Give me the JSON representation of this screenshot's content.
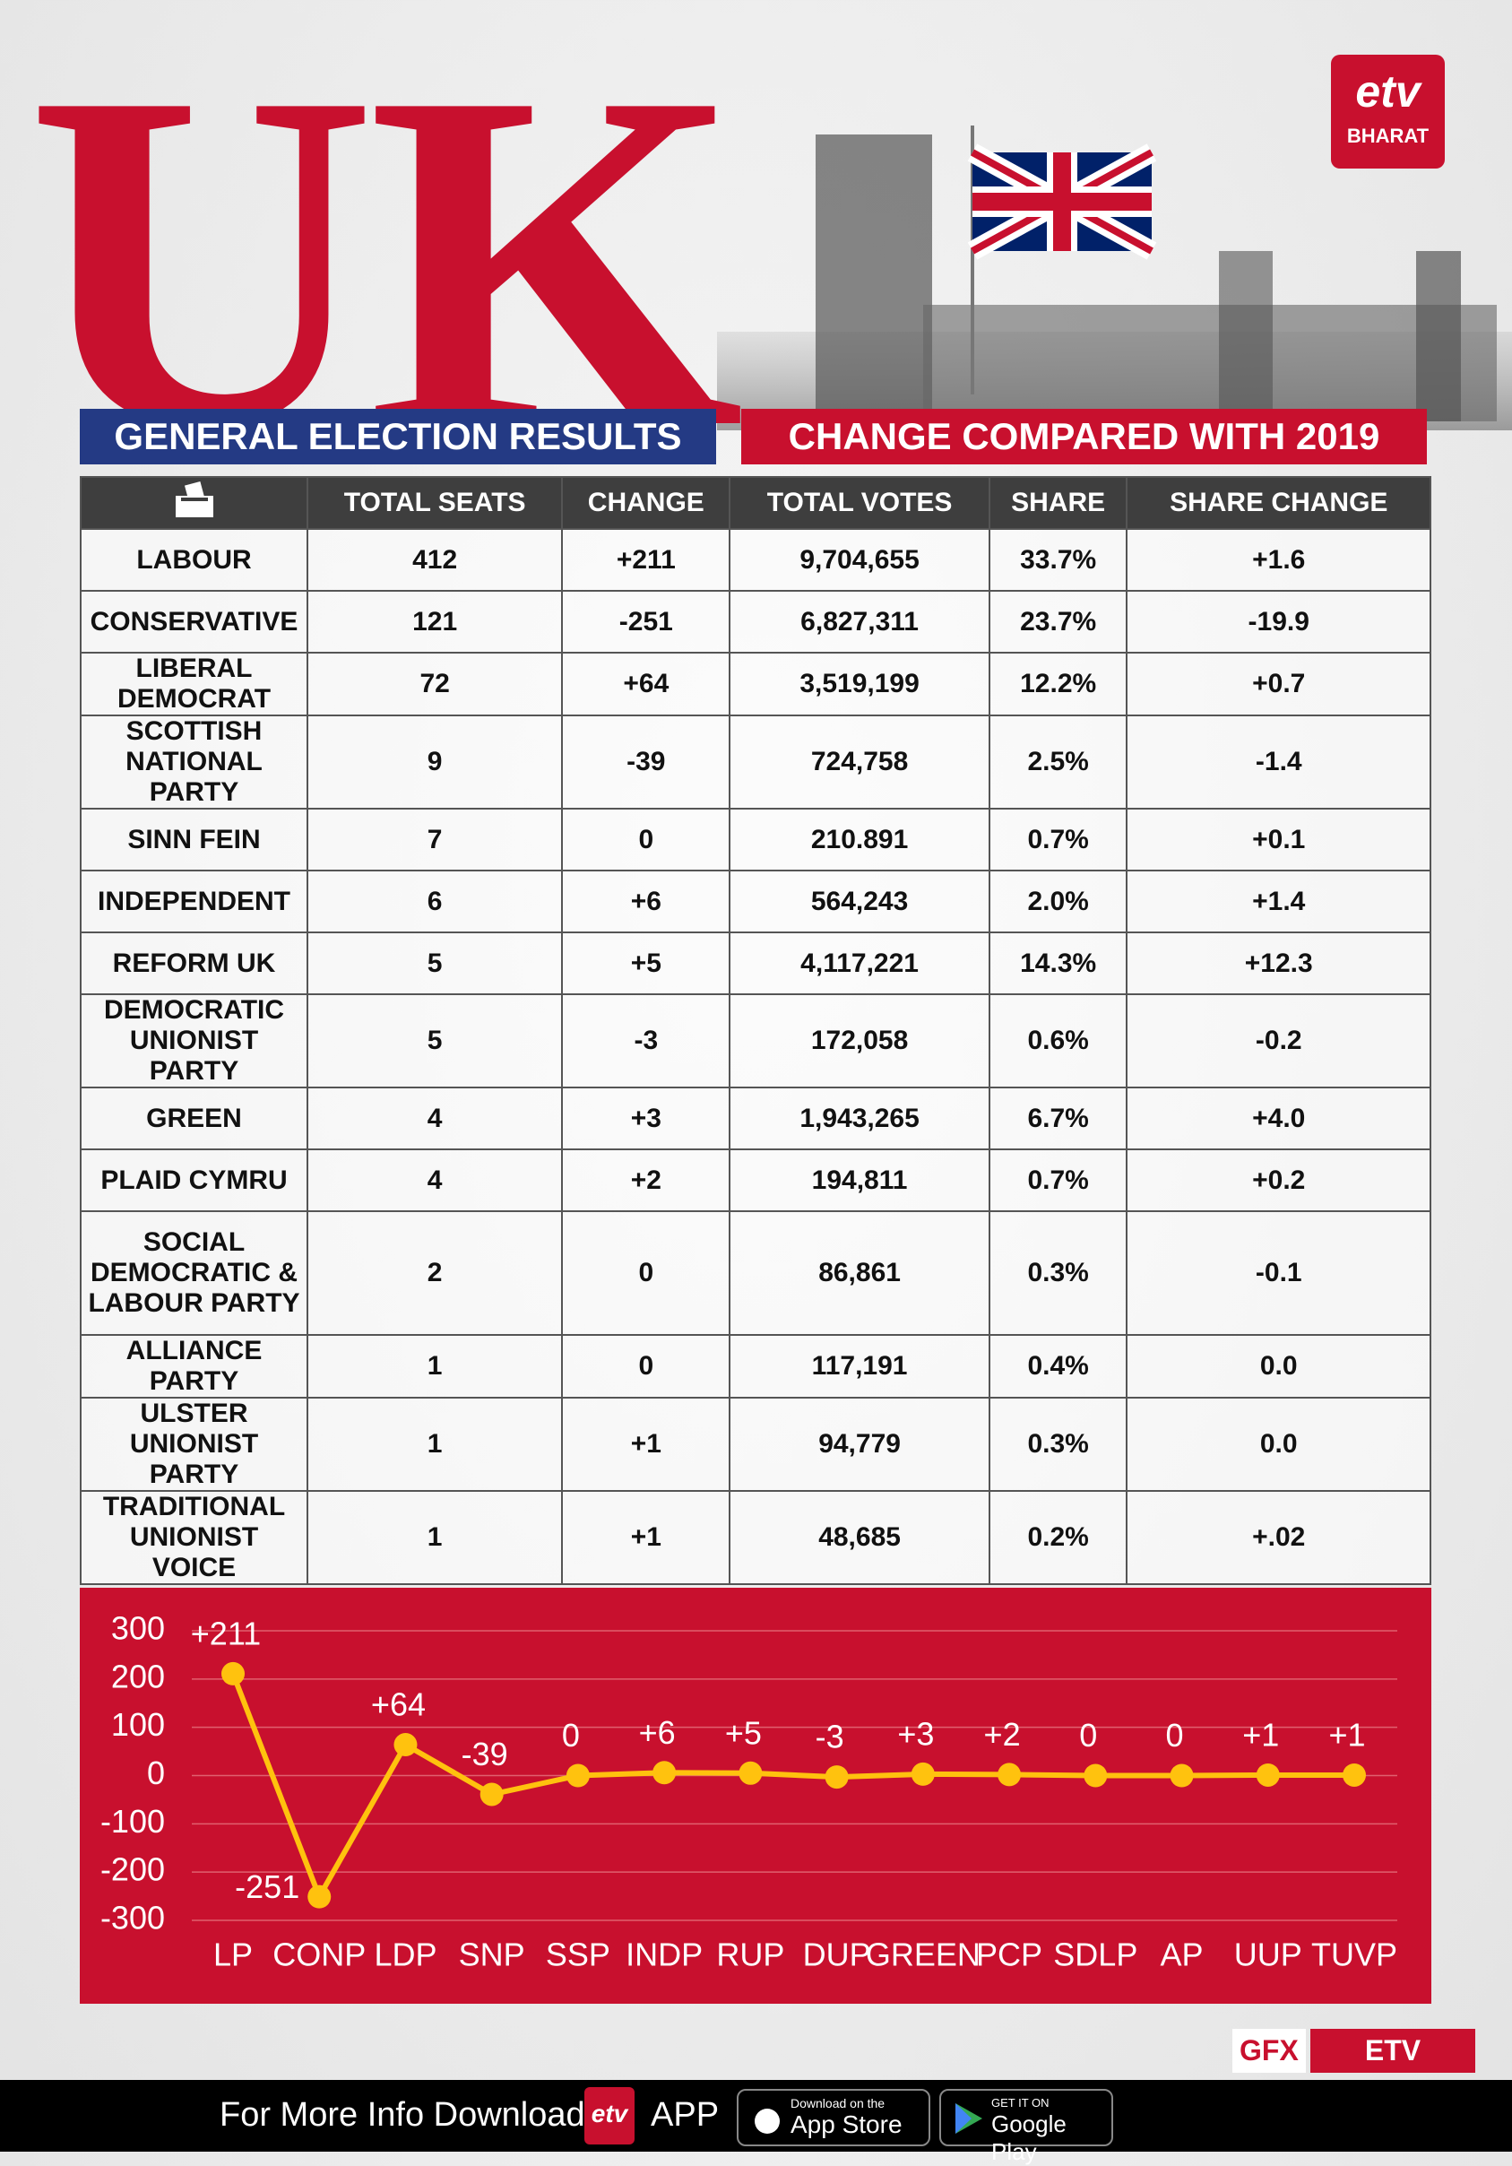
{
  "header": {
    "title": "UK",
    "banner_left": "GENERAL ELECTION RESULTS",
    "banner_right": "CHANGE COMPARED WITH 2019",
    "logo_mark": "etv",
    "logo_text": "BHARAT"
  },
  "table": {
    "columns": [
      "TOTAL SEATS",
      "CHANGE",
      "TOTAL VOTES",
      "SHARE",
      "SHARE CHANGE"
    ],
    "rows": [
      [
        "LABOUR",
        "412",
        "+211",
        "9,704,655",
        "33.7%",
        "+1.6"
      ],
      [
        "CONSERVATIVE",
        "121",
        "-251",
        "6,827,311",
        "23.7%",
        "-19.9"
      ],
      [
        "LIBERAL DEMOCRAT",
        "72",
        "+64",
        "3,519,199",
        "12.2%",
        "+0.7"
      ],
      [
        "SCOTTISH NATIONAL PARTY",
        "9",
        "-39",
        "724,758",
        "2.5%",
        "-1.4"
      ],
      [
        "SINN FEIN",
        "7",
        "0",
        "210.891",
        "0.7%",
        "+0.1"
      ],
      [
        "INDEPENDENT",
        "6",
        "+6",
        "564,243",
        "2.0%",
        "+1.4"
      ],
      [
        "REFORM UK",
        "5",
        "+5",
        "4,117,221",
        "14.3%",
        "+12.3"
      ],
      [
        "DEMOCRATIC UNIONIST PARTY",
        "5",
        "-3",
        "172,058",
        "0.6%",
        "-0.2"
      ],
      [
        "GREEN",
        "4",
        "+3",
        "1,943,265",
        "6.7%",
        "+4.0"
      ],
      [
        "PLAID CYMRU",
        "4",
        "+2",
        "194,811",
        "0.7%",
        "+0.2"
      ],
      [
        "SOCIAL DEMOCRATIC & LABOUR PARTY",
        "2",
        "0",
        "86,861",
        "0.3%",
        "-0.1"
      ],
      [
        "ALLIANCE PARTY",
        "1",
        "0",
        "117,191",
        "0.4%",
        "0.0"
      ],
      [
        "ULSTER UNIONIST PARTY",
        "1",
        "+1",
        "94,779",
        "0.3%",
        "0.0"
      ],
      [
        "TRADITIONAL UNIONIST VOICE",
        "1",
        "+1",
        "48,685",
        "0.2%",
        "+.02"
      ]
    ]
  },
  "chart_data": {
    "type": "line",
    "categories": [
      "LP",
      "CONP",
      "LDP",
      "SNP",
      "SSP",
      "INDP",
      "RUP",
      "DUP",
      "GREEN",
      "PCP",
      "SDLP",
      "AP",
      "UUP",
      "TUVP"
    ],
    "values": [
      211,
      -251,
      64,
      -39,
      0,
      6,
      5,
      -3,
      3,
      2,
      0,
      0,
      1,
      1
    ],
    "value_labels": [
      "+211",
      "-251",
      "+64",
      "-39",
      "0",
      "+6",
      "+5",
      "-3",
      "+3",
      "+2",
      "0",
      "0",
      "+1",
      "+1"
    ],
    "color": "#ffc20e",
    "background": "#c8102e",
    "ylim": [
      -300,
      300
    ],
    "yticks": [
      300,
      200,
      100,
      0,
      -100,
      -200,
      -300
    ],
    "grid": true
  },
  "footer": {
    "credit_prefix": "GFX",
    "credit": "ETV BHARAT",
    "text": "For More Info Download",
    "logo_mark": "etv",
    "app": "APP",
    "appstore_small": "Download on the",
    "appstore": "App Store",
    "play_small": "GET IT ON",
    "play": "Google Play"
  }
}
